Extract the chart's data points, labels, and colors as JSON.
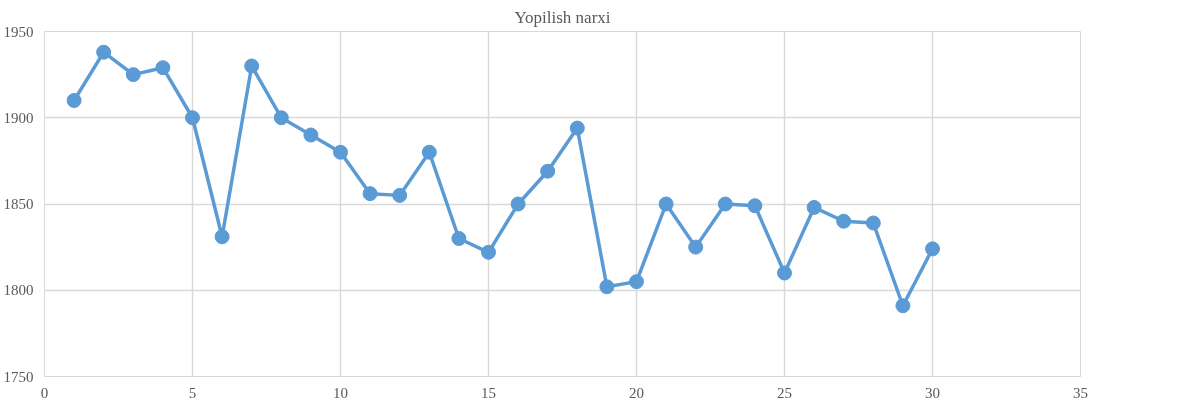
{
  "chart_data": {
    "type": "line",
    "title": "Yopilish narxi",
    "x": [
      1,
      2,
      3,
      4,
      5,
      6,
      7,
      8,
      9,
      10,
      11,
      12,
      13,
      14,
      15,
      16,
      17,
      18,
      19,
      20,
      21,
      22,
      23,
      24,
      25,
      26,
      27,
      28,
      29,
      30
    ],
    "series": [
      {
        "color": "#5b9bd5",
        "values": [
          1910,
          1938,
          1925,
          1929,
          1900,
          1831,
          1930,
          1900,
          1890,
          1880,
          1856,
          1855,
          1880,
          1830,
          1822,
          1850,
          1869,
          1894,
          1802,
          1805,
          1850,
          1825,
          1850,
          1849,
          1810,
          1848,
          1840,
          1839,
          1791,
          1824
        ]
      }
    ],
    "xlim": [
      0,
      35
    ],
    "xticks": [
      0,
      5,
      10,
      15,
      20,
      25,
      30,
      35
    ],
    "ylim": [
      1750,
      1950
    ],
    "yticks": [
      1750,
      1800,
      1850,
      1900,
      1950
    ],
    "grid": true,
    "marker": "circle",
    "line_style": "solid"
  }
}
